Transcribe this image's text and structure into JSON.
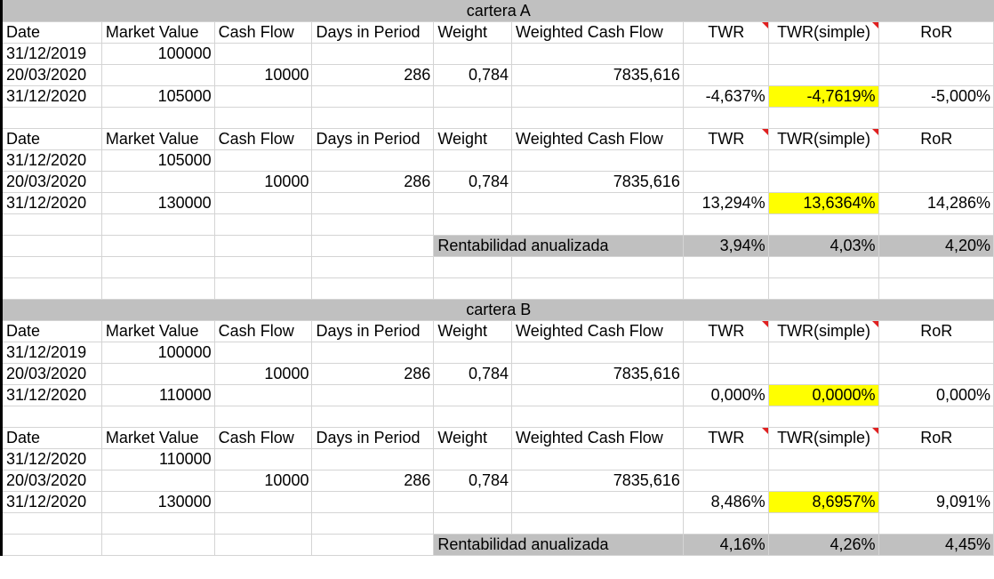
{
  "headers": {
    "date": "Date",
    "market_value": "Market Value",
    "cash_flow": "Cash Flow",
    "days": "Days in Period",
    "weight": "Weight",
    "wcf": "Weighted Cash Flow",
    "twr": "TWR",
    "twr_simple": "TWR(simple)",
    "ror": "RoR"
  },
  "annualized_label": "Rentabilidad anualizada",
  "sections": [
    {
      "title": "cartera A",
      "periods": [
        {
          "rows": [
            {
              "date": "31/12/2019",
              "market_value": "100000"
            },
            {
              "date": "20/03/2020",
              "cash_flow": "10000",
              "days": "286",
              "weight": "0,784",
              "wcf": "7835,616"
            },
            {
              "date": "31/12/2020",
              "market_value": "105000",
              "twr": "-4,637%",
              "twr_simple": "-4,7619%",
              "ror": "-5,000%"
            }
          ]
        },
        {
          "rows": [
            {
              "date": "31/12/2020",
              "market_value": "105000"
            },
            {
              "date": "20/03/2020",
              "cash_flow": "10000",
              "days": "286",
              "weight": "0,784",
              "wcf": "7835,616"
            },
            {
              "date": "31/12/2020",
              "market_value": "130000",
              "twr": "13,294%",
              "twr_simple": "13,6364%",
              "ror": "14,286%"
            }
          ]
        }
      ],
      "annualized": {
        "twr": "3,94%",
        "twr_simple": "4,03%",
        "ror": "4,20%"
      }
    },
    {
      "title": "cartera B",
      "periods": [
        {
          "rows": [
            {
              "date": "31/12/2019",
              "market_value": "100000"
            },
            {
              "date": "20/03/2020",
              "cash_flow": "10000",
              "days": "286",
              "weight": "0,784",
              "wcf": "7835,616"
            },
            {
              "date": "31/12/2020",
              "market_value": "110000",
              "twr": "0,000%",
              "twr_simple": "0,0000%",
              "ror": "0,000%"
            }
          ]
        },
        {
          "rows": [
            {
              "date": "31/12/2020",
              "market_value": "110000"
            },
            {
              "date": "20/03/2020",
              "cash_flow": "10000",
              "days": "286",
              "weight": "0,784",
              "wcf": "7835,616"
            },
            {
              "date": "31/12/2020",
              "market_value": "130000",
              "twr": "8,486%",
              "twr_simple": "8,6957%",
              "ror": "9,091%"
            }
          ]
        }
      ],
      "annualized": {
        "twr": "4,16%",
        "twr_simple": "4,26%",
        "ror": "4,45%"
      }
    }
  ],
  "colors": {
    "section_header_bg": "#c0c0c0",
    "highlight": "#ffff00",
    "gridline": "#d4d4d4",
    "comment_marker": "#e02020"
  }
}
